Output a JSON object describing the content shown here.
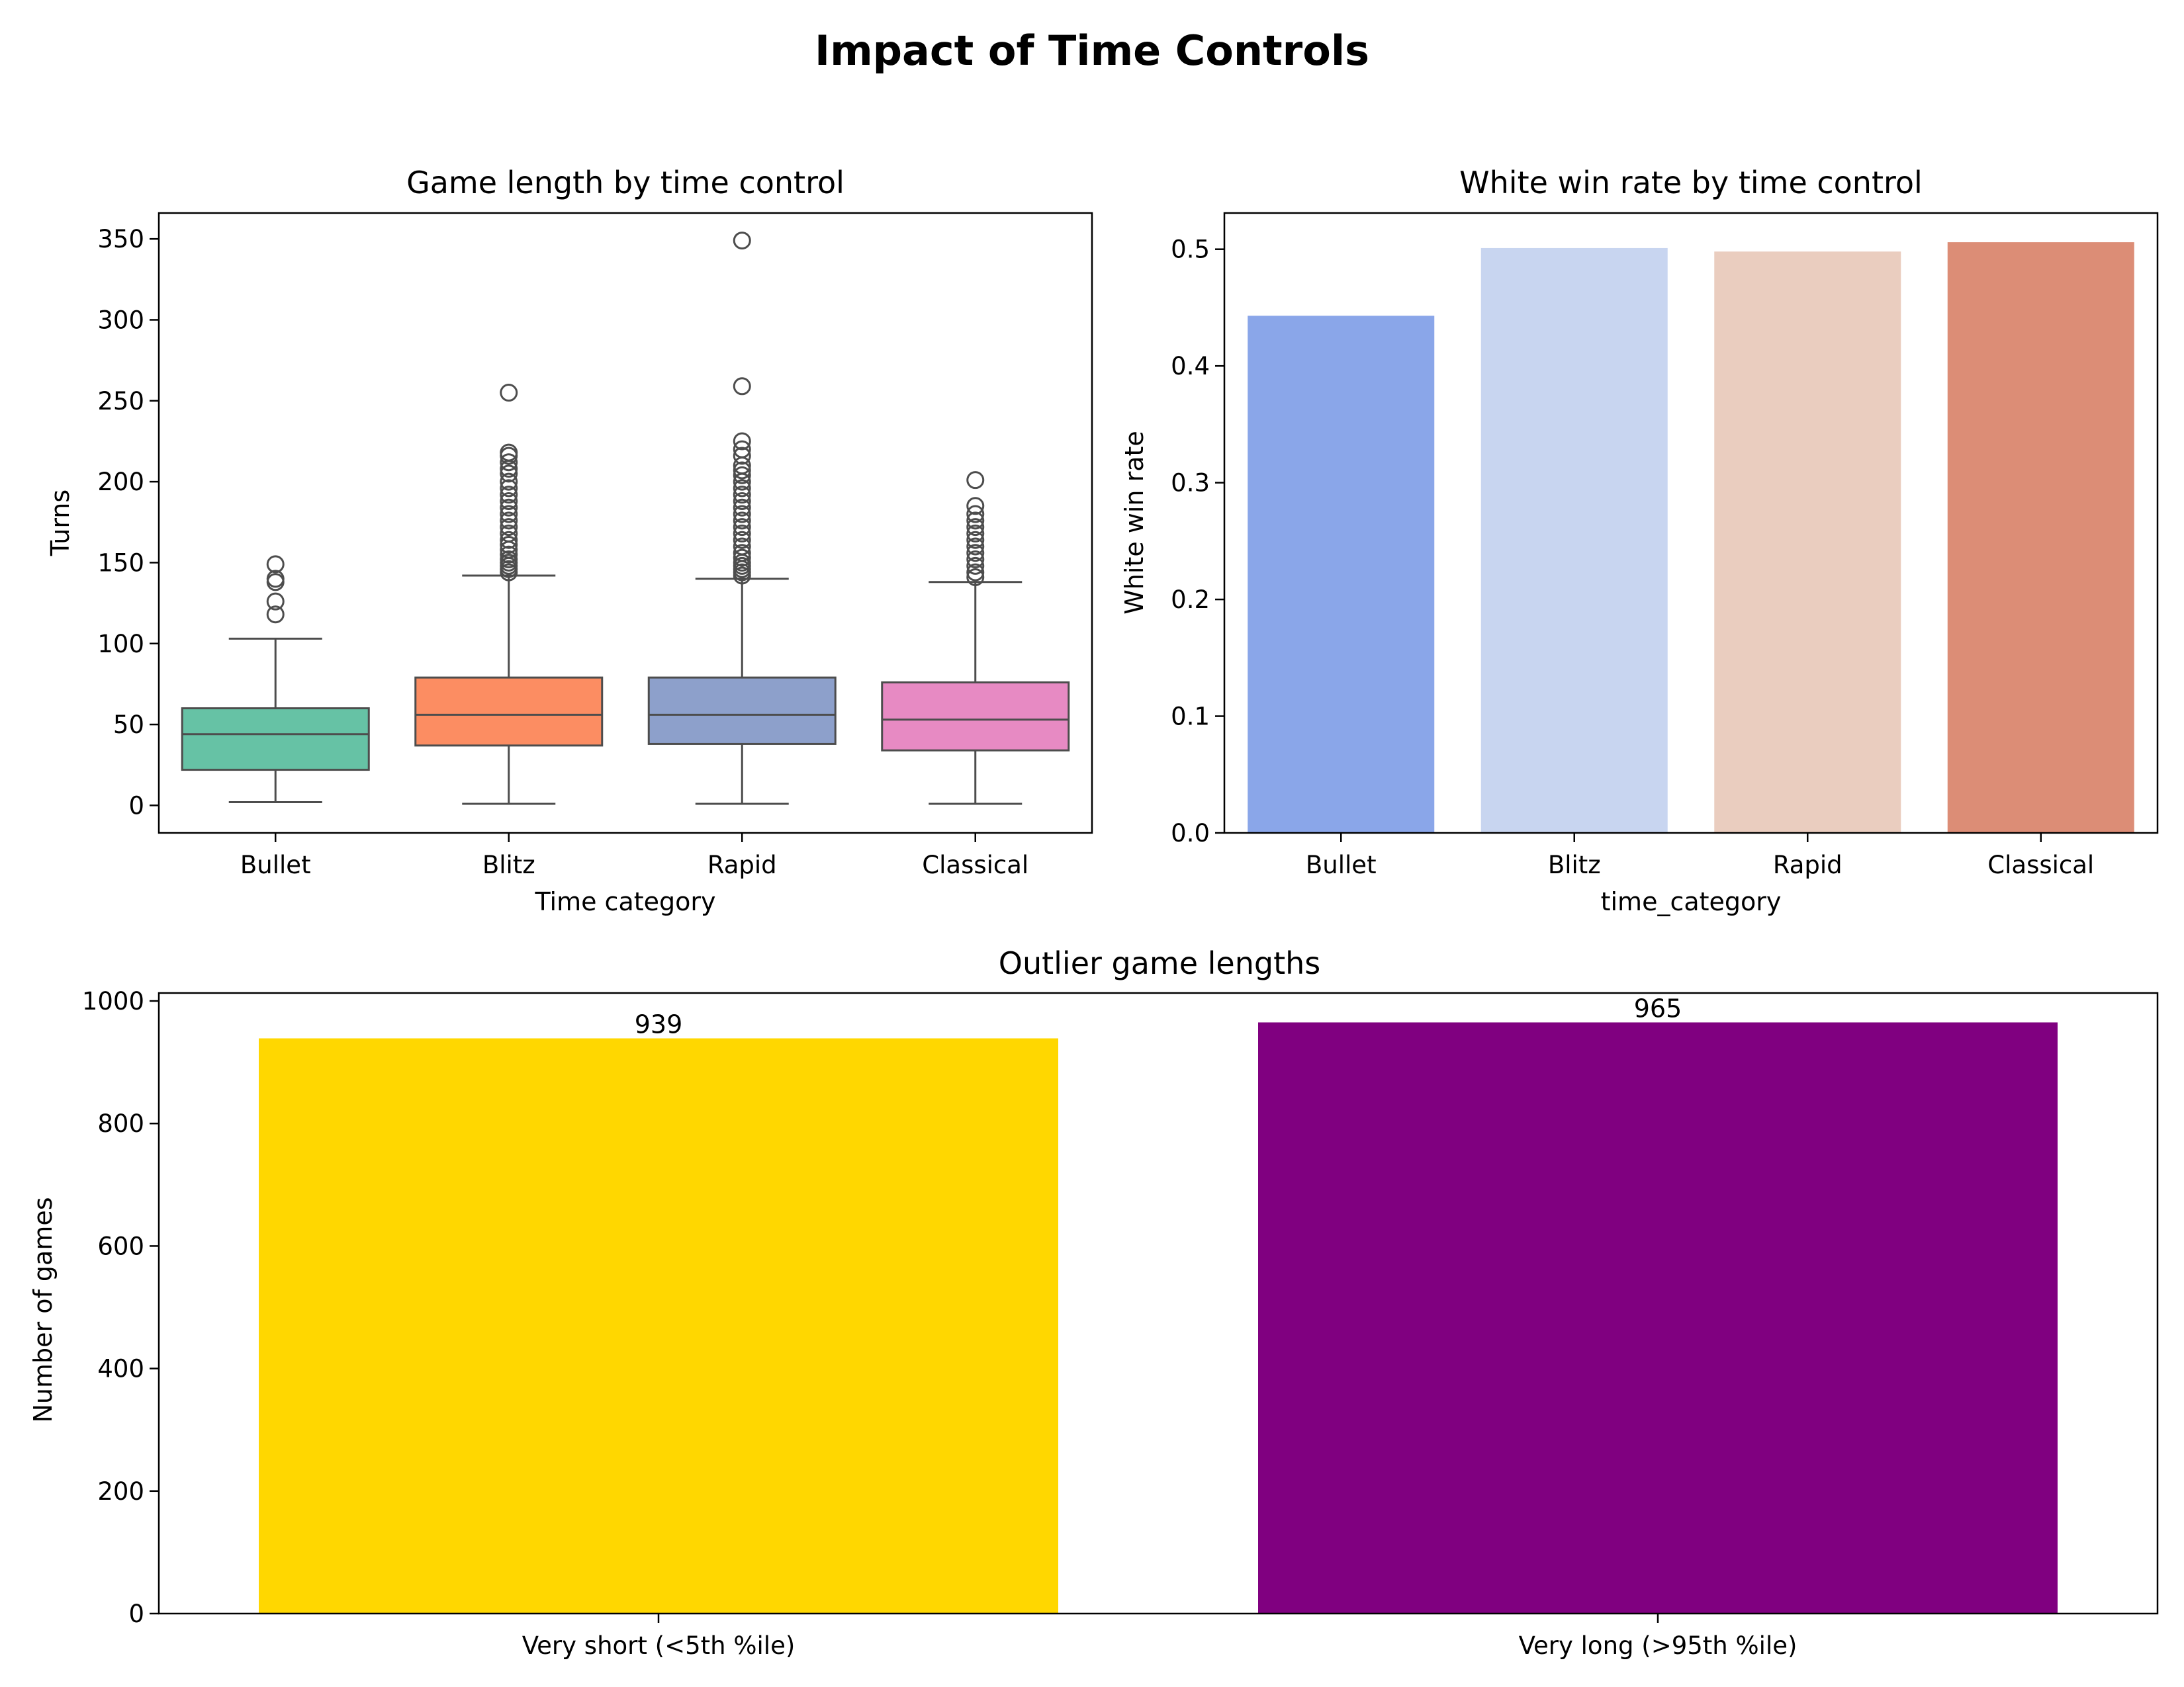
{
  "figure": {
    "title": "Impact of Time Controls"
  },
  "chart_data": [
    {
      "type": "box",
      "title": "Game length by time control",
      "xlabel": "Time category",
      "ylabel": "Turns",
      "categories": [
        "Bullet",
        "Blitz",
        "Rapid",
        "Classical"
      ],
      "ylim": [
        -17,
        366
      ],
      "yticks": [
        0,
        50,
        100,
        150,
        200,
        250,
        300,
        350
      ],
      "colors": [
        "#66c2a5",
        "#fc8d62",
        "#8da0cb",
        "#e78ac3"
      ],
      "boxes": [
        {
          "category": "Bullet",
          "whisker_low": 2,
          "q1": 22,
          "median": 44,
          "q3": 60,
          "whisker_high": 103,
          "outliers": [
            118,
            126,
            138,
            140,
            149
          ]
        },
        {
          "category": "Blitz",
          "whisker_low": 1,
          "q1": 37,
          "median": 56,
          "q3": 79,
          "whisker_high": 142,
          "outliers": [
            144,
            146,
            148,
            150,
            152,
            155,
            158,
            161,
            164,
            168,
            172,
            176,
            180,
            184,
            188,
            192,
            196,
            200,
            205,
            208,
            212,
            216,
            218,
            255
          ]
        },
        {
          "category": "Rapid",
          "whisker_low": 1,
          "q1": 38,
          "median": 56,
          "q3": 79,
          "whisker_high": 140,
          "outliers": [
            142,
            144,
            146,
            148,
            150,
            153,
            156,
            160,
            164,
            168,
            172,
            176,
            180,
            184,
            188,
            192,
            196,
            200,
            204,
            207,
            210,
            216,
            220,
            225,
            259,
            349
          ]
        },
        {
          "category": "Classical",
          "whisker_low": 1,
          "q1": 34,
          "median": 53,
          "q3": 76,
          "whisker_high": 138,
          "outliers": [
            141,
            144,
            148,
            152,
            156,
            160,
            164,
            168,
            172,
            176,
            180,
            185,
            201
          ]
        }
      ]
    },
    {
      "type": "bar",
      "title": "White win rate by time control",
      "xlabel": "time_category",
      "ylabel": "White win rate",
      "categories": [
        "Bullet",
        "Blitz",
        "Rapid",
        "Classical"
      ],
      "values": [
        0.443,
        0.501,
        0.498,
        0.506
      ],
      "colors": [
        "#8aa6e9",
        "#c8d5f0",
        "#eacdbf",
        "#dc8d76"
      ],
      "ylim": [
        0,
        0.531
      ],
      "yticks": [
        0.0,
        0.1,
        0.2,
        0.3,
        0.4,
        0.5
      ],
      "ytick_labels": [
        "0.0",
        "0.1",
        "0.2",
        "0.3",
        "0.4",
        "0.5"
      ]
    },
    {
      "type": "bar",
      "title": "Outlier game lengths",
      "xlabel": "",
      "ylabel": "Number of games",
      "categories": [
        "Very short (<5th %ile)",
        "Very long (>95th %ile)"
      ],
      "values": [
        939,
        965
      ],
      "data_labels": [
        "939",
        "965"
      ],
      "colors": [
        "#ffd700",
        "#800080"
      ],
      "ylim": [
        0,
        1013
      ],
      "yticks": [
        0,
        200,
        400,
        600,
        800,
        1000
      ]
    }
  ]
}
